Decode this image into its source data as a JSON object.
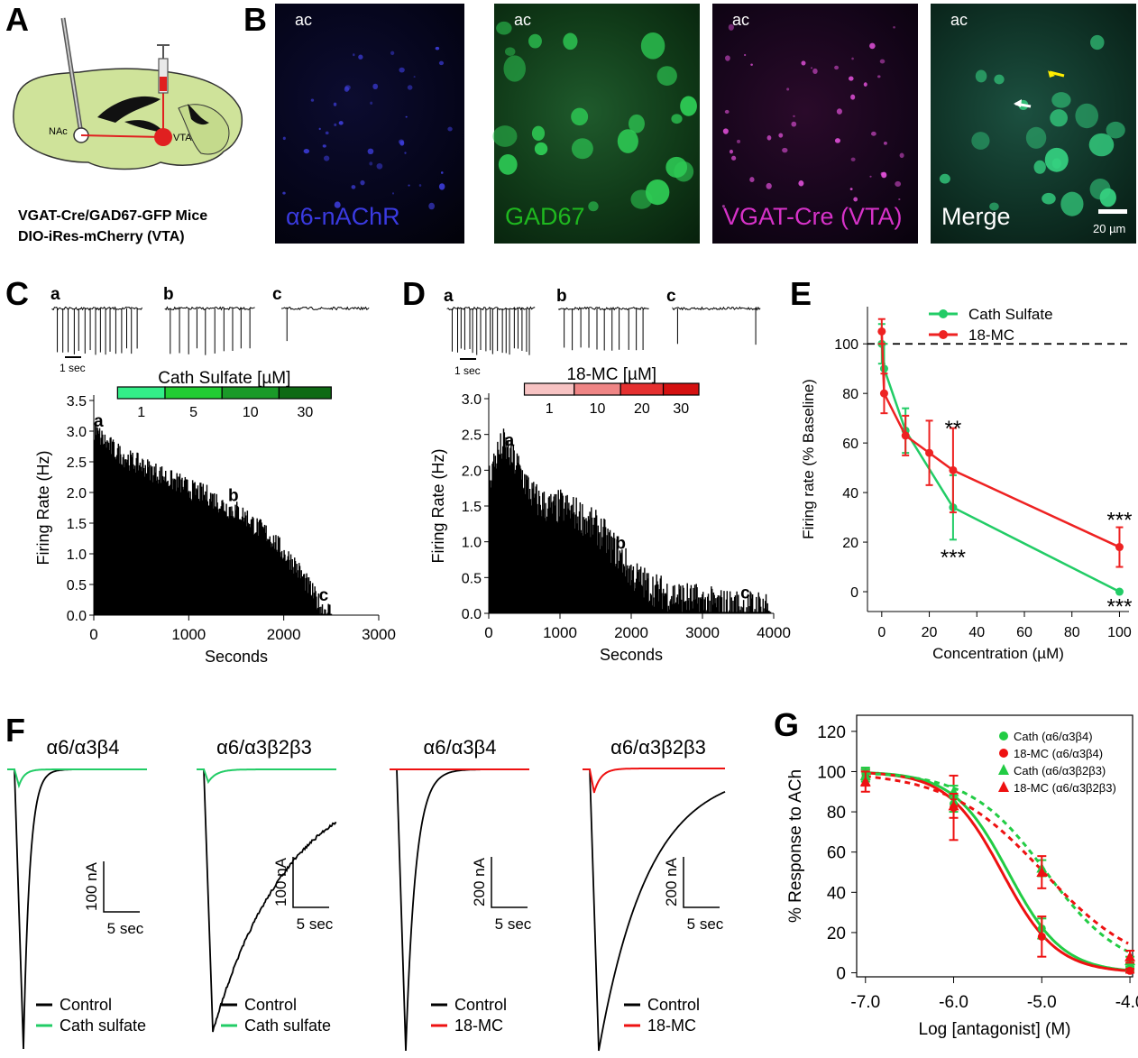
{
  "panels": {
    "A": {
      "letter": "A",
      "brain_labels": {
        "nac": "NAc",
        "vta": "VTA"
      },
      "caption_line1": "VGAT-Cre/GAD67-GFP Mice",
      "caption_line2": "DIO-iRes-mCherry (VTA)"
    },
    "B": {
      "letter": "B",
      "images": [
        {
          "ac": "ac",
          "label": "α6-nAChR",
          "label_color": "#3a3ae0",
          "fluor_color": "#2a2aa8"
        },
        {
          "ac": "ac",
          "label": "GAD67",
          "label_color": "#1fb81f",
          "fluor_color": "#1c8a2c"
        },
        {
          "ac": "ac",
          "label": "VGAT-Cre (VTA)",
          "label_color": "#d632c8",
          "fluor_color": "#a0309a"
        },
        {
          "ac": "ac",
          "label": "Merge",
          "label_color": "#ffffff",
          "fluor_color": "#1a7a4a"
        }
      ],
      "scale_bar": "20 µm"
    },
    "C": {
      "letter": "C",
      "trace_labels": [
        "a",
        "b",
        "c"
      ],
      "trace_scale": "1 sec",
      "drug_bar_title": "Cath Sulfate [µM]",
      "drug_doses": [
        "1",
        "5",
        "10",
        "30"
      ],
      "drug_colors": [
        "#33ee88",
        "#22cc33",
        "#1a9a28",
        "#0e6a14"
      ],
      "hist_labels": [
        "a",
        "b",
        "c"
      ]
    },
    "D": {
      "letter": "D",
      "trace_labels": [
        "a",
        "b",
        "c"
      ],
      "trace_scale": "1 sec",
      "drug_bar_title": "18-MC [µM]",
      "drug_doses": [
        "1",
        "10",
        "20",
        "30"
      ],
      "drug_colors": [
        "#f7c3c3",
        "#ef8585",
        "#e53030",
        "#d41010"
      ],
      "hist_labels": [
        "a",
        "b",
        "c"
      ]
    },
    "E": {
      "letter": "E"
    },
    "F": {
      "letter": "F",
      "traces": [
        {
          "title": "α6/α3β4",
          "scale_y": "100 nA",
          "scale_x": "5 sec",
          "legend": [
            "Control",
            "Cath sulfate"
          ],
          "drug_color": "#22cc66"
        },
        {
          "title": "α6/α3β2β3",
          "scale_y": "100 nA",
          "scale_x": "5 sec",
          "legend": [
            "Control",
            "Cath sulfate"
          ],
          "drug_color": "#22cc66"
        },
        {
          "title": "α6/α3β4",
          "scale_y": "200 nA",
          "scale_x": "5 sec",
          "legend": [
            "Control",
            "18-MC"
          ],
          "drug_color": "#ee1111"
        },
        {
          "title": "α6/α3β2β3",
          "scale_y": "200 nA",
          "scale_x": "5 sec",
          "legend": [
            "Control",
            "18-MC"
          ],
          "drug_color": "#ee1111"
        }
      ]
    },
    "G": {
      "letter": "G"
    }
  },
  "chart_data": [
    {
      "id": "C",
      "type": "bar",
      "xlabel": "Seconds",
      "ylabel": "Firing Rate (Hz)",
      "xlim": [
        0,
        3000
      ],
      "ylim": [
        0,
        3.5
      ],
      "xticks": [
        "0",
        "1000",
        "2000",
        "3000"
      ],
      "yticks": [
        "0.0",
        "0.5",
        "1.0",
        "1.5",
        "2.0",
        "2.5",
        "3.0",
        "3.5"
      ],
      "histogram_envelope": {
        "x": [
          0,
          100,
          200,
          300,
          400,
          500,
          600,
          700,
          800,
          900,
          1000,
          1100,
          1200,
          1300,
          1400,
          1500,
          1600,
          1700,
          1800,
          1900,
          2000,
          2100,
          2200,
          2300,
          2400,
          2500
        ],
        "y": [
          3.0,
          2.85,
          2.7,
          2.6,
          2.5,
          2.45,
          2.35,
          2.3,
          2.2,
          2.15,
          2.05,
          2.0,
          1.95,
          1.85,
          1.75,
          1.7,
          1.6,
          1.45,
          1.35,
          1.2,
          1.0,
          0.85,
          0.6,
          0.35,
          0.1,
          0.05
        ]
      },
      "drug_segments": [
        {
          "dose": "1",
          "x": [
            250,
            750
          ]
        },
        {
          "dose": "5",
          "x": [
            750,
            1350
          ]
        },
        {
          "dose": "10",
          "x": [
            1350,
            1950
          ]
        },
        {
          "dose": "30",
          "x": [
            1950,
            2500
          ]
        }
      ],
      "markers": [
        {
          "label": "a",
          "x": 50
        },
        {
          "label": "b",
          "x": 1470
        },
        {
          "label": "c",
          "x": 2420
        }
      ]
    },
    {
      "id": "D",
      "type": "bar",
      "xlabel": "Seconds",
      "ylabel": "Firing Rate (Hz)",
      "xlim": [
        0,
        4000
      ],
      "ylim": [
        0,
        3.0
      ],
      "xticks": [
        "0",
        "1000",
        "2000",
        "3000",
        "4000"
      ],
      "yticks": [
        "0.0",
        "0.5",
        "1.0",
        "1.5",
        "2.0",
        "2.5",
        "3.0"
      ],
      "histogram_envelope": {
        "x": [
          0,
          100,
          200,
          300,
          400,
          500,
          600,
          700,
          800,
          900,
          1000,
          1100,
          1200,
          1300,
          1400,
          1500,
          1600,
          1700,
          1800,
          1900,
          2000,
          2200,
          2400,
          2600,
          2800,
          3000,
          3200,
          3400,
          3600,
          3800,
          3950
        ],
        "y": [
          1.9,
          2.2,
          2.35,
          2.2,
          2.05,
          1.85,
          1.65,
          1.55,
          1.5,
          1.45,
          1.5,
          1.45,
          1.4,
          1.35,
          1.25,
          1.2,
          1.1,
          0.95,
          0.85,
          0.7,
          0.55,
          0.4,
          0.3,
          0.25,
          0.2,
          0.15,
          0.12,
          0.1,
          0.08,
          0.1,
          0.12
        ]
      },
      "drug_segments": [
        {
          "dose": "1",
          "x": [
            500,
            1200
          ]
        },
        {
          "dose": "10",
          "x": [
            1200,
            1850
          ]
        },
        {
          "dose": "20",
          "x": [
            1850,
            2450
          ]
        },
        {
          "dose": "30",
          "x": [
            2450,
            2950
          ]
        }
      ],
      "markers": [
        {
          "label": "a",
          "x": 290
        },
        {
          "label": "b",
          "x": 1850
        },
        {
          "label": "c",
          "x": 3600
        }
      ]
    },
    {
      "id": "E",
      "type": "line",
      "xlabel": "Concentration (µM)",
      "ylabel": "Firing rate (% Baseline)",
      "xlim": [
        -6,
        104
      ],
      "ylim": [
        -8,
        115
      ],
      "xticks": [
        0,
        20,
        40,
        60,
        80,
        100
      ],
      "yticks": [
        0,
        20,
        40,
        60,
        80,
        100
      ],
      "baseline": 100,
      "series": [
        {
          "name": "Cath Sulfate",
          "color": "#22cc66",
          "x": [
            0,
            1,
            10,
            30,
            100
          ],
          "y": [
            100,
            90,
            65,
            34,
            0
          ],
          "err": [
            8,
            10,
            9,
            13,
            0
          ]
        },
        {
          "name": "18-MC",
          "color": "#ee2222",
          "x": [
            0,
            1,
            10,
            20,
            30,
            100
          ],
          "y": [
            105,
            80,
            63,
            56,
            49,
            18
          ],
          "err": [
            5,
            8,
            8,
            13,
            17,
            8
          ]
        }
      ],
      "annotations": [
        {
          "text": "**",
          "x": 30,
          "y": 63
        },
        {
          "text": "***",
          "x": 30,
          "y": 11
        },
        {
          "text": "***",
          "x": 100,
          "y": 26
        },
        {
          "text": "***",
          "x": 100,
          "y": -9
        }
      ]
    },
    {
      "id": "G",
      "type": "line",
      "xlabel": "Log [antagonist] (M)",
      "ylabel": "% Response to ACh",
      "xlim": [
        -7.1,
        -3.97
      ],
      "ylim": [
        -2,
        128
      ],
      "xticks": [
        "-7.0",
        "-6.0",
        "-5.0",
        "-4.0"
      ],
      "yticks": [
        0,
        20,
        40,
        60,
        80,
        100,
        120
      ],
      "series": [
        {
          "name": "Cath (α6/α3β4)",
          "color": "#22cc44",
          "marker": "circle",
          "dash": "solid",
          "x": [
            -7,
            -6,
            -5,
            -4
          ],
          "y": [
            99,
            84,
            22,
            2
          ],
          "err": [
            3,
            4,
            5,
            1
          ]
        },
        {
          "name": "18-MC (α6/α3β4)",
          "color": "#ee1111",
          "marker": "circle",
          "dash": "solid",
          "x": [
            -7,
            -6,
            -5,
            -4
          ],
          "y": [
            97,
            82,
            18,
            1
          ],
          "err": [
            4,
            16,
            10,
            1
          ]
        },
        {
          "name": "Cath (α6/α3β2β3)",
          "color": "#22cc44",
          "marker": "triangle",
          "dash": "dashed",
          "x": [
            -7,
            -6,
            -5,
            -4
          ],
          "y": [
            98,
            90,
            52,
            6
          ],
          "err": [
            3,
            3,
            4,
            2
          ]
        },
        {
          "name": "18-MC (α6/α3β2β3)",
          "color": "#ee1111",
          "marker": "triangle",
          "dash": "dashed",
          "x": [
            -7,
            -6,
            -5,
            -4
          ],
          "y": [
            95,
            83,
            50,
            8
          ],
          "err": [
            5,
            6,
            8,
            3
          ]
        }
      ],
      "fits": [
        {
          "color": "#22cc44",
          "dash": "solid",
          "ic50_log": -5.38,
          "hill": 1.4,
          "top": 100,
          "bottom": 0
        },
        {
          "color": "#ee1111",
          "dash": "solid",
          "ic50_log": -5.45,
          "hill": 1.4,
          "top": 100,
          "bottom": 0
        },
        {
          "color": "#22cc44",
          "dash": "dashed",
          "ic50_log": -4.95,
          "hill": 1.0,
          "top": 100,
          "bottom": 0
        },
        {
          "color": "#ee1111",
          "dash": "dashed",
          "ic50_log": -4.98,
          "hill": 0.8,
          "top": 100,
          "bottom": 0
        }
      ]
    }
  ]
}
